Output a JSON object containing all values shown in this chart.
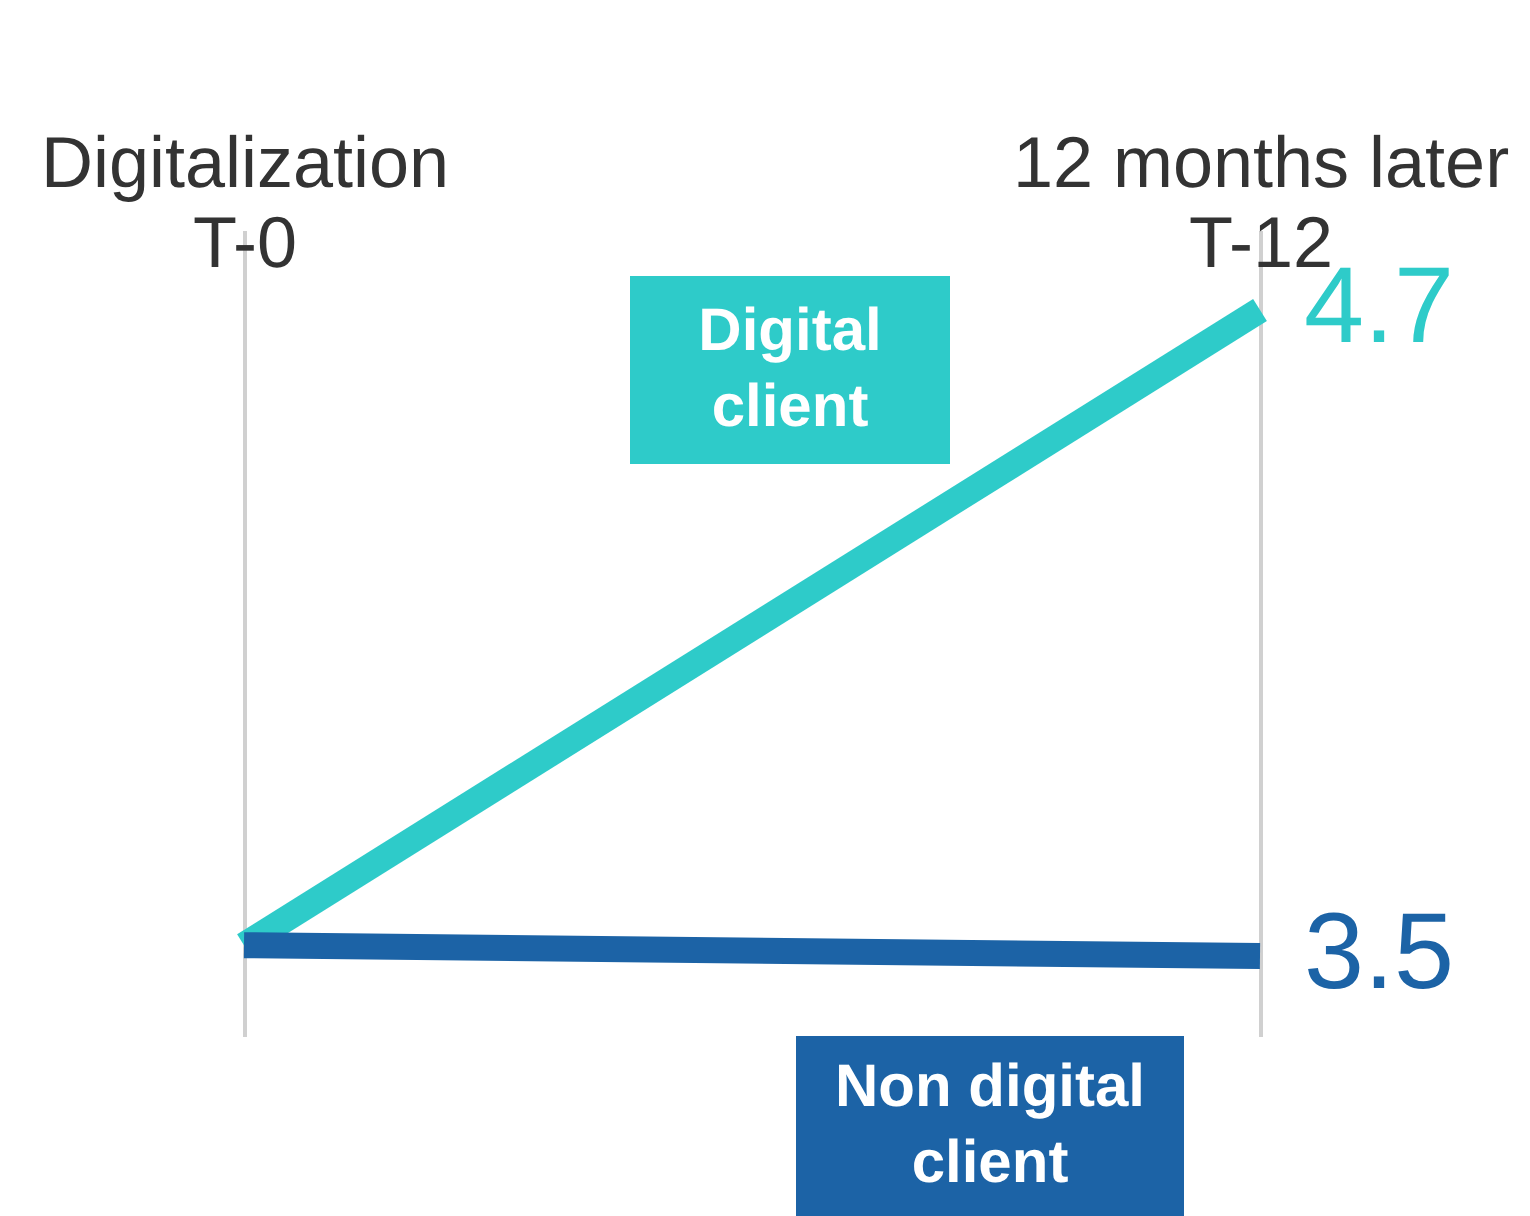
{
  "chart_data": {
    "type": "line",
    "categories": [
      "Digitalization\nT-0",
      "12 months later\nT-12"
    ],
    "series": [
      {
        "name": "Digital client",
        "color": "#2ecbc9",
        "values": [
          3.52,
          4.7
        ],
        "value_labels": [
          null,
          "4.7"
        ]
      },
      {
        "name": "Non digital client",
        "color": "#1c63a6",
        "values": [
          3.52,
          3.5
        ],
        "value_labels": [
          null,
          "3.5"
        ]
      }
    ],
    "grid": "x",
    "marker": "none",
    "line_style": "solid"
  }
}
